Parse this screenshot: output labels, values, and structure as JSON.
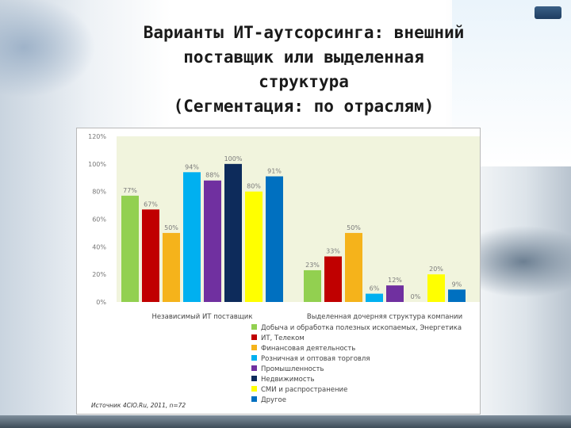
{
  "slide": {
    "title": "Варианты ИТ-аутсорсинга: внешний\nпоставщик или выделенная\nструктура\n(Сегментация: по отраслям)"
  },
  "chart_data": {
    "type": "bar",
    "title": "",
    "xlabel": "",
    "ylabel": "",
    "ylim": [
      0,
      120
    ],
    "y_ticks": [
      "0%",
      "20%",
      "40%",
      "60%",
      "80%",
      "100%",
      "120%"
    ],
    "grid": false,
    "legend_position": "bottom",
    "categories": [
      "Независимый ИТ поставщик",
      "Выделенная дочерняя структура компании"
    ],
    "series": [
      {
        "name": "Добыча и обработка полезных ископаемых, Энергетика",
        "color": "#92d050",
        "values": [
          77,
          23
        ],
        "labels": [
          "77%",
          "23%"
        ]
      },
      {
        "name": "ИТ, Телеком",
        "color": "#c00000",
        "values": [
          67,
          33
        ],
        "labels": [
          "67%",
          "33%"
        ]
      },
      {
        "name": "Финансовая деятельность",
        "color": "#f5b31b",
        "values": [
          50,
          50
        ],
        "labels": [
          "50%",
          "50%"
        ]
      },
      {
        "name": "Розничная и оптовая торговля",
        "color": "#00b0f0",
        "values": [
          94,
          6
        ],
        "labels": [
          "94%",
          "6%"
        ]
      },
      {
        "name": "Промышленность",
        "color": "#7030a0",
        "values": [
          88,
          12
        ],
        "labels": [
          "88%",
          "12%"
        ]
      },
      {
        "name": "Недвижимость",
        "color": "#0d2b5b",
        "values": [
          100,
          0
        ],
        "labels": [
          "100%",
          "0%"
        ]
      },
      {
        "name": "СМИ и распространение",
        "color": "#ffff00",
        "values": [
          80,
          20
        ],
        "labels": [
          "80%",
          "20%"
        ]
      },
      {
        "name": "Другое",
        "color": "#0070c0",
        "values": [
          91,
          9
        ],
        "labels": [
          "91%",
          "9%"
        ]
      }
    ],
    "source": "Источник 4CIO.Ru, 2011, n=72"
  }
}
